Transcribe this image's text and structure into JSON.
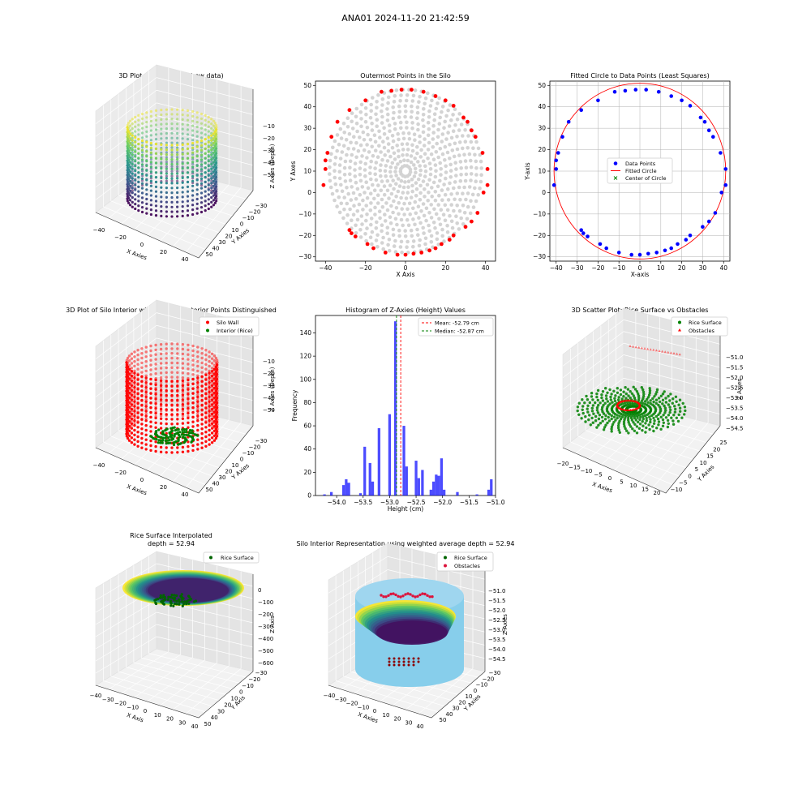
{
  "figure": {
    "suptitle": "ANA01 2024-11-20 21:42:59"
  },
  "chart_data": [
    {
      "id": "silo3d",
      "type": "scatter",
      "projection": "3d",
      "title": "3D Plot of Silo Interior(row data)",
      "xlabel": "X Axies",
      "ylabel": "Y Axies",
      "zlabel": "Z Axies (Depth)",
      "xticks": [
        -40,
        -20,
        0,
        20,
        40
      ],
      "yticks": [
        -30,
        -20,
        -10,
        0,
        10,
        20,
        30,
        40,
        50
      ],
      "zticks": [
        -10,
        -20,
        -30,
        -40,
        -50
      ],
      "xlim": [
        -42,
        42
      ],
      "ylim": [
        -30,
        50
      ],
      "zlim": [
        -56,
        -5
      ],
      "colormap": [
        "#440154",
        "#3b528b",
        "#21918c",
        "#5ec962",
        "#fde725"
      ],
      "grid": true
    },
    {
      "id": "outer",
      "type": "scatter",
      "title": "Outermost Points in the Silo",
      "xlabel": "X Axis",
      "ylabel": "Y Axes",
      "xlim": [
        -45,
        45
      ],
      "ylim": [
        -32,
        52
      ],
      "xticks": [
        -40,
        -20,
        0,
        20,
        40
      ],
      "yticks": [
        -30,
        -20,
        -10,
        0,
        10,
        20,
        30,
        40,
        50
      ],
      "center": [
        0,
        10
      ],
      "radius": 41,
      "colors": {
        "interior": "#d3d3d3",
        "outermost": "#ff0000"
      },
      "outer_points": [
        [
          -41,
          3.5
        ],
        [
          -40,
          11
        ],
        [
          -40,
          15
        ],
        [
          -39,
          18.5
        ],
        [
          -37,
          26
        ],
        [
          -34,
          33
        ],
        [
          -28,
          38.5
        ],
        [
          -20,
          43
        ],
        [
          -12,
          47
        ],
        [
          -7,
          47.5
        ],
        [
          -2,
          48
        ],
        [
          3,
          48
        ],
        [
          9,
          47
        ],
        [
          15,
          45
        ],
        [
          20,
          43
        ],
        [
          24,
          40.5
        ],
        [
          29,
          35
        ],
        [
          31,
          33
        ],
        [
          33,
          29
        ],
        [
          35,
          26
        ],
        [
          38.5,
          18.5
        ],
        [
          41,
          11
        ],
        [
          41,
          3.5
        ],
        [
          39,
          0
        ],
        [
          36,
          -9.5
        ],
        [
          33,
          -13.5
        ],
        [
          30,
          -16
        ],
        [
          24,
          -20
        ],
        [
          22,
          -22
        ],
        [
          18,
          -24
        ],
        [
          15,
          -26
        ],
        [
          12,
          -27
        ],
        [
          8,
          -28
        ],
        [
          4,
          -28.5
        ],
        [
          0,
          -29
        ],
        [
          -4,
          -29
        ],
        [
          -10,
          -28
        ],
        [
          -16,
          -26
        ],
        [
          -19,
          -24
        ],
        [
          -25,
          -20.5
        ],
        [
          -27,
          -19
        ],
        [
          -28,
          -17.5
        ]
      ],
      "grid": false
    },
    {
      "id": "circlefit",
      "type": "scatter",
      "title": "Fitted Circle to Data Points (Least Squares)",
      "xlabel": "X-axis",
      "ylabel": "Y-axis",
      "xlim": [
        -43,
        43
      ],
      "ylim": [
        -32,
        52
      ],
      "xticks": [
        -40,
        -30,
        -20,
        -10,
        0,
        10,
        20,
        30,
        40
      ],
      "yticks": [
        -30,
        -20,
        -10,
        0,
        10,
        20,
        30,
        40,
        50
      ],
      "circle": {
        "cx": 0,
        "cy": 10,
        "r": 41
      },
      "legend": [
        "Data Points",
        "Fitted Circle",
        "Center of Circle"
      ],
      "legend_loc": "center",
      "grid": true
    },
    {
      "id": "wall3d",
      "type": "scatter",
      "projection": "3d",
      "title": "3D Plot of Silo Interior with Wall and Interior Points Distinguished",
      "xlabel": "X Axies",
      "ylabel": "Y Axies",
      "zlabel": "Z Axies (Depth)",
      "xticks": [
        -40,
        -20,
        0,
        20,
        40
      ],
      "yticks": [
        -30,
        -20,
        -10,
        0,
        10,
        20,
        30,
        40,
        50
      ],
      "zticks": [
        -10,
        -20,
        -30,
        -40,
        -50
      ],
      "legend": [
        "Silo Wall",
        "Interior (Rice)"
      ],
      "legend_loc": "upper right",
      "colors": {
        "wall": "#ff0000",
        "interior": "#008000"
      },
      "grid": true
    },
    {
      "id": "hist",
      "type": "bar",
      "title": "Histogram of Z-Axies (Height) Values",
      "xlabel": "Height (cm)",
      "ylabel": "Frequency",
      "xlim": [
        -54.4,
        -51.0
      ],
      "ylim": [
        0,
        155
      ],
      "xticks": [
        "−54.0",
        "−53.5",
        "−53.0",
        "−52.5",
        "−52.0",
        "−51.5",
        "−51.0"
      ],
      "xtick_values": [
        -54.0,
        -53.5,
        -53.0,
        -52.5,
        -52.0,
        -51.5,
        -51.0
      ],
      "yticks": [
        0,
        20,
        40,
        60,
        80,
        100,
        120,
        140
      ],
      "bins": [
        {
          "x": -54.23,
          "v": 1
        },
        {
          "x": -54.1,
          "v": 3
        },
        {
          "x": -53.87,
          "v": 9
        },
        {
          "x": -53.82,
          "v": 14
        },
        {
          "x": -53.77,
          "v": 11
        },
        {
          "x": -53.55,
          "v": 2
        },
        {
          "x": -53.47,
          "v": 42
        },
        {
          "x": -53.37,
          "v": 28
        },
        {
          "x": -53.32,
          "v": 12
        },
        {
          "x": -53.2,
          "v": 58
        },
        {
          "x": -53.0,
          "v": 70
        },
        {
          "x": -52.89,
          "v": 150
        },
        {
          "x": -52.73,
          "v": 60
        },
        {
          "x": -52.68,
          "v": 25
        },
        {
          "x": -52.5,
          "v": 30
        },
        {
          "x": -52.45,
          "v": 15
        },
        {
          "x": -52.38,
          "v": 22
        },
        {
          "x": -52.22,
          "v": 5
        },
        {
          "x": -52.17,
          "v": 12
        },
        {
          "x": -52.12,
          "v": 18
        },
        {
          "x": -52.07,
          "v": 17
        },
        {
          "x": -52.02,
          "v": 32
        },
        {
          "x": -51.97,
          "v": 5
        },
        {
          "x": -51.72,
          "v": 3
        },
        {
          "x": -51.35,
          "v": 1
        },
        {
          "x": -51.13,
          "v": 5
        },
        {
          "x": -51.08,
          "v": 14
        }
      ],
      "bar_width": 0.05,
      "mean": -52.79,
      "median": -52.87,
      "legend": [
        "Mean: -52.79 cm",
        "Median: -52.87 cm"
      ],
      "legend_loc": "upper right",
      "colors": {
        "bar": "#0000ff",
        "mean": "#ff0000",
        "median": "#008000"
      }
    },
    {
      "id": "rice3d",
      "type": "scatter",
      "projection": "3d",
      "title": "3D Scatter Plot: Rice Surface vs Obstacles",
      "xlabel": "X Axies",
      "ylabel": "Y Axies",
      "zlabel": "Z Axies",
      "xticks": [
        -20,
        -15,
        -10,
        -5,
        0,
        5,
        10,
        15,
        20
      ],
      "yticks": [
        -10,
        -5,
        0,
        5,
        10,
        15,
        20,
        25
      ],
      "zticks": [
        "−51.0",
        "−51.5",
        "−52.0",
        "−52.5",
        "−53.0",
        "−53.5",
        "−54.0",
        "−54.5"
      ],
      "legend": [
        "Rice Surface",
        "Obstacles"
      ],
      "legend_loc": "upper right",
      "grid": true
    },
    {
      "id": "interp3d",
      "type": "area",
      "projection": "3d",
      "title": "Rice Surface Interpolated",
      "subtitle": "depth = 52.94",
      "xlabel": "X Axis",
      "ylabel": "Y Axis",
      "zlabel": "Z Axis",
      "xticks": [
        -40,
        -30,
        -20,
        -10,
        0,
        10,
        20,
        30,
        40
      ],
      "yticks": [
        -30,
        -20,
        -10,
        0,
        10,
        20,
        30,
        40,
        50
      ],
      "zticks": [
        0,
        -100,
        -200,
        -300,
        -400,
        -500,
        -600
      ],
      "legend": [
        "Rice Surface"
      ],
      "legend_loc": "upper right",
      "grid": true
    },
    {
      "id": "weighted3d",
      "type": "area",
      "projection": "3d",
      "title": "Silo Interior Representation using weighted average depth = 52.94",
      "xlabel": "X Axies",
      "ylabel": "Y Axies",
      "zlabel": "Z Axies",
      "xticks": [
        -40,
        -30,
        -20,
        -10,
        0,
        10,
        20,
        30,
        40
      ],
      "yticks": [
        -30,
        -20,
        -10,
        0,
        10,
        20,
        30,
        40,
        50
      ],
      "zticks": [
        "−51.0",
        "−51.5",
        "−52.0",
        "−52.5",
        "−53.0",
        "−53.5",
        "−54.0",
        "−54.5"
      ],
      "legend": [
        "Rice Surface",
        "Obstacles"
      ],
      "legend_loc": "upper center",
      "grid": true
    }
  ]
}
